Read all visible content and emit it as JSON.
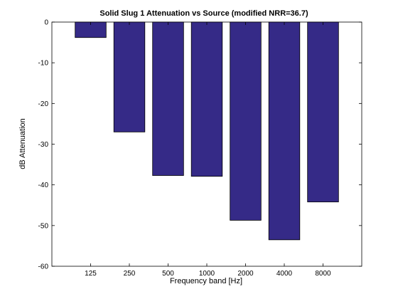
{
  "chart_data": {
    "type": "bar",
    "title": "Solid Slug 1 Attenuation vs Source (modified NRR=36.7)",
    "xlabel": "Frequency band [Hz]",
    "ylabel": "dB Attenuation",
    "categories": [
      "125",
      "250",
      "500",
      "1000",
      "2000",
      "4000",
      "8000"
    ],
    "values": [
      -3.8,
      -27.0,
      -37.7,
      -37.9,
      -48.7,
      -53.5,
      -44.2
    ],
    "ylim": [
      -60,
      0
    ],
    "yticks": [
      0,
      -10,
      -20,
      -30,
      -40,
      -50,
      -60
    ],
    "grid": false,
    "legend": "none",
    "bar_color": "#352a87",
    "bar_edge_color": "#000000"
  }
}
